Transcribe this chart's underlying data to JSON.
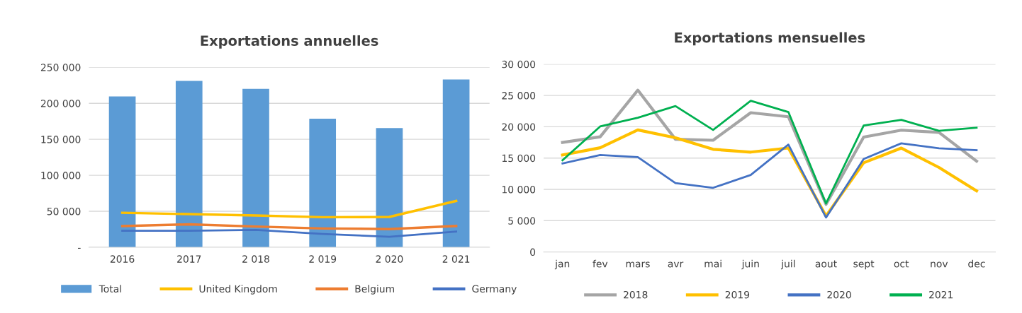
{
  "chart_data": [
    {
      "type": "bar",
      "title": "Exportations annuelles",
      "categories": [
        "2016",
        "2017",
        "2 018",
        "2 019",
        "2 020",
        "2 021"
      ],
      "series": [
        {
          "name": "Total",
          "type": "bar",
          "color": "#5b9bd5",
          "values": [
            209400,
            231200,
            220100,
            178700,
            165600,
            233100
          ]
        },
        {
          "name": "United Kingdom",
          "type": "line",
          "color": "#ffc000",
          "values": [
            47900,
            46000,
            44100,
            41800,
            42200,
            64400
          ]
        },
        {
          "name": "Belgium",
          "type": "line",
          "color": "#ed7d31",
          "values": [
            29500,
            31800,
            28800,
            26100,
            25300,
            29500
          ]
        },
        {
          "name": "Germany",
          "type": "line",
          "color": "#4472c4",
          "values": [
            23000,
            23000,
            24200,
            18400,
            14600,
            21900
          ]
        }
      ],
      "ylim": [
        0,
        250000
      ],
      "yticks": [
        {
          "value": 0,
          "label": "-"
        },
        {
          "value": 50000,
          "label": "50 000"
        },
        {
          "value": 100000,
          "label": "100 000"
        },
        {
          "value": 150000,
          "label": "150 000"
        },
        {
          "value": 200000,
          "label": "200 000"
        },
        {
          "value": 250000,
          "label": "250 000"
        }
      ],
      "grid": "y",
      "legend": "bottom"
    },
    {
      "type": "line",
      "title": "Exportations mensuelles",
      "categories": [
        "jan",
        "fev",
        "mars",
        "avr",
        "mai",
        "juin",
        "juil",
        "aout",
        "sept",
        "oct",
        "nov",
        "dec"
      ],
      "series": [
        {
          "name": "2018",
          "color": "#a5a5a5",
          "values": [
            17500,
            18400,
            25850,
            18000,
            17850,
            22250,
            21600,
            7600,
            18350,
            19450,
            19100,
            14500
          ]
        },
        {
          "name": "2019",
          "color": "#ffc000",
          "values": [
            15500,
            16650,
            19500,
            18250,
            16400,
            15950,
            16600,
            5750,
            14250,
            16600,
            13500,
            9750
          ]
        },
        {
          "name": "2020",
          "color": "#4472c4",
          "values": [
            14150,
            15500,
            15150,
            11000,
            10250,
            12300,
            17150,
            5500,
            14850,
            17350,
            16550,
            16250
          ]
        },
        {
          "name": "2021",
          "color": "#00b050",
          "values": [
            14650,
            20050,
            21450,
            23300,
            19500,
            24150,
            22350,
            7750,
            20200,
            21100,
            19350,
            19850
          ]
        }
      ],
      "ylim": [
        0,
        30000
      ],
      "yticks": [
        0,
        {
          "value": 5000,
          "label": "5 000"
        },
        {
          "value": 10000,
          "label": "10 000"
        },
        {
          "value": 15000,
          "label": "15 000"
        },
        {
          "value": 20000,
          "label": "20 000"
        },
        {
          "value": 25000,
          "label": "25 000"
        },
        {
          "value": 30000,
          "label": "30 000"
        }
      ],
      "grid": "y",
      "legend": "bottom"
    }
  ]
}
